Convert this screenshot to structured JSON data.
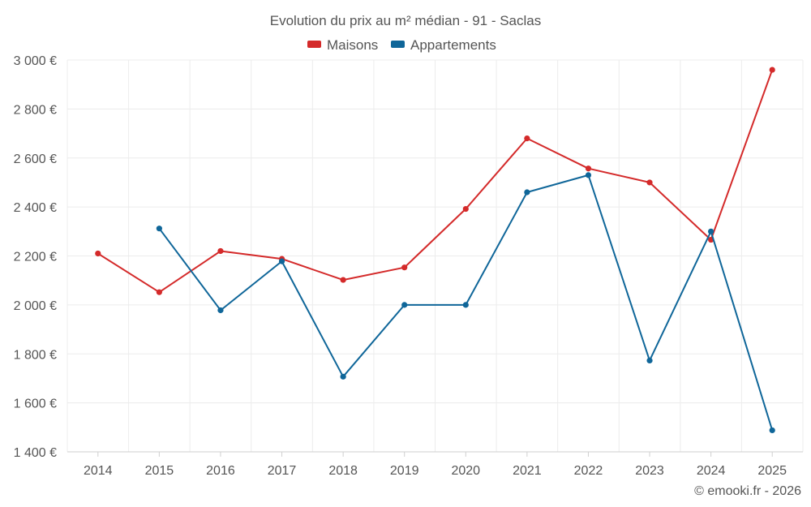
{
  "chart_data": {
    "type": "line",
    "title": "Evolution du prix au m² médian - 91 - Saclas",
    "categories": [
      "2014",
      "2015",
      "2016",
      "2017",
      "2018",
      "2019",
      "2020",
      "2021",
      "2022",
      "2023",
      "2024",
      "2025"
    ],
    "ylim": [
      1400,
      3000
    ],
    "yticks": [
      1400,
      1600,
      1800,
      2000,
      2200,
      2400,
      2600,
      2800,
      3000
    ],
    "ytick_labels": [
      "1 400 €",
      "1 600 €",
      "1 800 €",
      "2 000 €",
      "2 200 €",
      "2 400 €",
      "2 600 €",
      "2 800 €",
      "3 000 €"
    ],
    "xlabel": "",
    "ylabel": "",
    "legend_position": "top-center",
    "grid": true,
    "series": [
      {
        "name": "Maisons",
        "color": "#d42a2a",
        "values": [
          2210,
          2052,
          2220,
          2188,
          2102,
          2153,
          2392,
          2680,
          2557,
          2500,
          2266,
          2960
        ]
      },
      {
        "name": "Appartements",
        "color": "#0f6699",
        "values": [
          null,
          2312,
          1978,
          2178,
          1707,
          2000,
          2000,
          2460,
          2530,
          1773,
          2300,
          1488
        ]
      }
    ]
  },
  "credit": "© emooki.fr - 2026"
}
